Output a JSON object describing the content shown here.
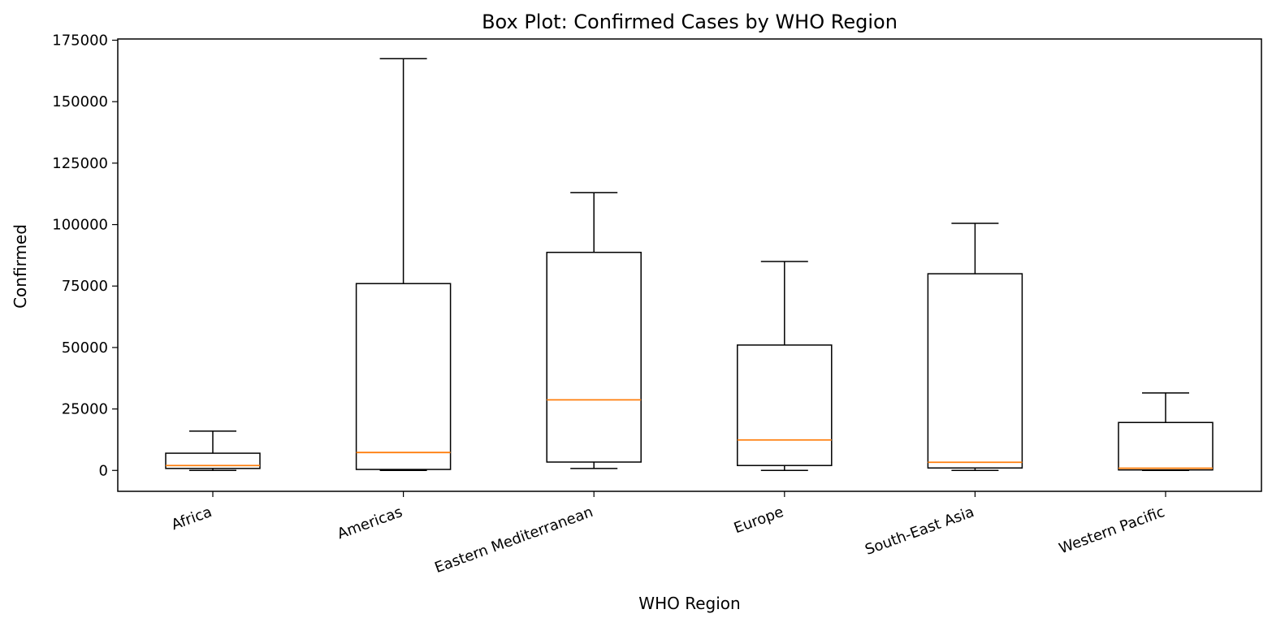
{
  "chart_data": {
    "type": "box",
    "title": "Box Plot: Confirmed Cases by WHO Region",
    "xlabel": "WHO Region",
    "ylabel": "Confirmed",
    "ylim": [
      -8500,
      175500
    ],
    "yticks": [
      0,
      25000,
      50000,
      75000,
      100000,
      125000,
      150000,
      175000
    ],
    "categories": [
      "Africa",
      "Americas",
      "Eastern Mediterranean",
      "Europe",
      "South-East Asia",
      "Western Pacific"
    ],
    "boxes": [
      {
        "category": "Africa",
        "whisker_low": 0,
        "q1": 800,
        "median": 2000,
        "q3": 7000,
        "whisker_high": 16000
      },
      {
        "category": "Americas",
        "whisker_low": 0,
        "q1": 400,
        "median": 7300,
        "q3": 76000,
        "whisker_high": 167500
      },
      {
        "category": "Eastern Mediterranean",
        "whisker_low": 800,
        "q1": 3400,
        "median": 28700,
        "q3": 88700,
        "whisker_high": 113000
      },
      {
        "category": "Europe",
        "whisker_low": 0,
        "q1": 2000,
        "median": 12400,
        "q3": 51000,
        "whisker_high": 85000
      },
      {
        "category": "South-East Asia",
        "whisker_low": 0,
        "q1": 1000,
        "median": 3300,
        "q3": 80000,
        "whisker_high": 100500
      },
      {
        "category": "Western Pacific",
        "whisker_low": 0,
        "q1": 200,
        "median": 900,
        "q3": 19500,
        "whisker_high": 31500
      }
    ],
    "grid": false,
    "legend": "none",
    "colors": {
      "box": "#000000",
      "median": "#ff7f0e",
      "background": "#ffffff"
    }
  }
}
